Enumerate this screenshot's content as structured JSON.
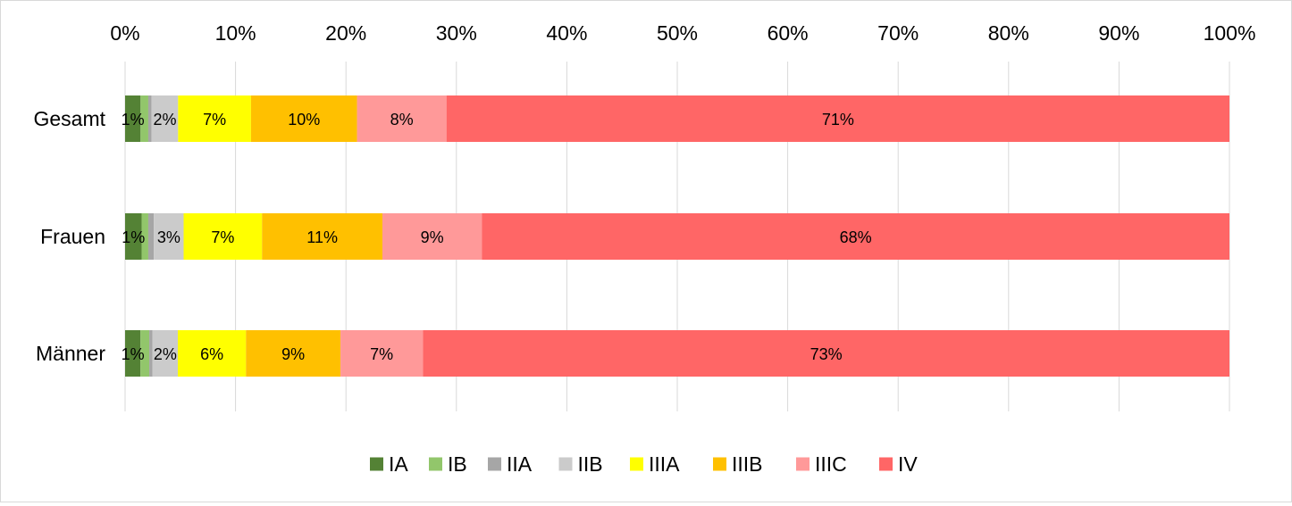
{
  "chart_data": {
    "type": "bar",
    "orientation": "horizontal",
    "stacked": "percent",
    "x_axis_position": "top",
    "xlim": [
      0,
      100
    ],
    "x_ticks": [
      "0%",
      "10%",
      "20%",
      "30%",
      "40%",
      "50%",
      "60%",
      "70%",
      "80%",
      "90%",
      "100%"
    ],
    "grid": true,
    "legend_position": "bottom",
    "categories": [
      "Gesamt",
      "Frauen",
      "Männer"
    ],
    "series": [
      {
        "name": "IA",
        "color": "#548235",
        "values": [
          1.4,
          1.5,
          1.4
        ],
        "labels": [
          "1%",
          "1%",
          "1%"
        ]
      },
      {
        "name": "IB",
        "color": "#92c66b",
        "values": [
          0.7,
          0.6,
          0.8
        ],
        "labels": [
          "",
          "",
          ""
        ]
      },
      {
        "name": "IIA",
        "color": "#a6a6a6",
        "values": [
          0.3,
          0.5,
          0.3
        ],
        "labels": [
          "",
          "",
          ""
        ]
      },
      {
        "name": "IIB",
        "color": "#cbcbcb",
        "values": [
          2.4,
          2.7,
          2.3
        ],
        "labels": [
          "2%",
          "3%",
          "2%"
        ]
      },
      {
        "name": "IIIA",
        "color": "#ffff00",
        "values": [
          6.6,
          7.1,
          6.2
        ],
        "labels": [
          "7%",
          "7%",
          "6%"
        ]
      },
      {
        "name": "IIIB",
        "color": "#ffc000",
        "values": [
          9.6,
          10.9,
          8.6
        ],
        "labels": [
          "10%",
          "11%",
          "9%"
        ]
      },
      {
        "name": "IIIC",
        "color": "#ff9999",
        "values": [
          8.1,
          9.0,
          7.5
        ],
        "labels": [
          "8%",
          "9%",
          "7%"
        ]
      },
      {
        "name": "IV",
        "color": "#ff6666",
        "values": [
          70.9,
          67.7,
          73.4
        ],
        "labels": [
          "71%",
          "68%",
          "73%"
        ]
      }
    ]
  }
}
